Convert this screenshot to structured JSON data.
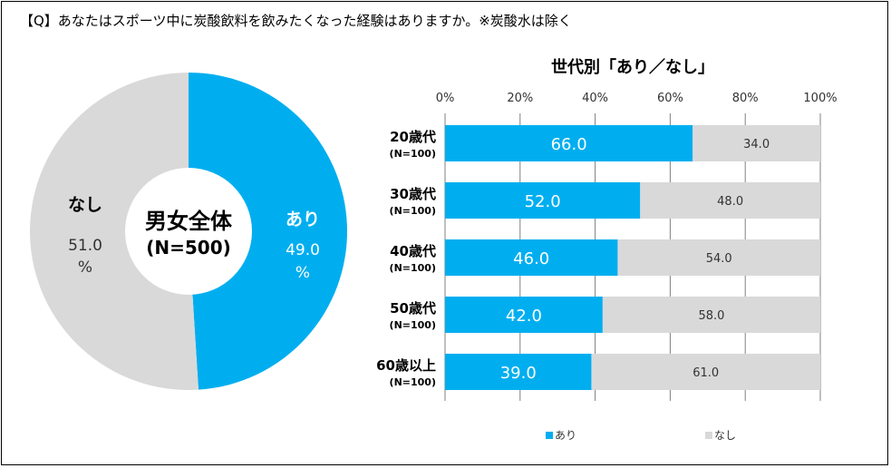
{
  "question": "【Q】あなたはスポーツ中に炭酸飲料を飲みたくなった経験はありますか。※炭酸水は除く",
  "colors": {
    "yes": "#00AEEF",
    "no": "#D9D9D9",
    "grid": "#808080"
  },
  "chart_data": [
    {
      "type": "pie",
      "title": "男女全体",
      "subtitle": "(N=500)",
      "slices": [
        {
          "label": "あり",
          "value": 49.0,
          "value_label": "49.0",
          "unit": "%"
        },
        {
          "label": "なし",
          "value": 51.0,
          "value_label": "51.0",
          "unit": "%"
        }
      ]
    },
    {
      "type": "bar",
      "orientation": "horizontal",
      "stacked": true,
      "title": "世代別「あり／なし」",
      "xlim": [
        0,
        100
      ],
      "xticks": [
        "0%",
        "20%",
        "40%",
        "60%",
        "80%",
        "100%"
      ],
      "grid": true,
      "categories": [
        {
          "label": "20歳代",
          "n": "(N=100)"
        },
        {
          "label": "30歳代",
          "n": "(N=100)"
        },
        {
          "label": "40歳代",
          "n": "(N=100)"
        },
        {
          "label": "50歳代",
          "n": "(N=100)"
        },
        {
          "label": "60歳以上",
          "n": "(N=100)"
        }
      ],
      "series": [
        {
          "name": "あり",
          "values": [
            66.0,
            52.0,
            46.0,
            42.0,
            39.0
          ],
          "labels": [
            "66.0",
            "52.0",
            "46.0",
            "42.0",
            "39.0"
          ]
        },
        {
          "name": "なし",
          "values": [
            34.0,
            48.0,
            54.0,
            58.0,
            61.0
          ],
          "labels": [
            "34.0",
            "48.0",
            "54.0",
            "58.0",
            "61.0"
          ]
        }
      ],
      "legend": {
        "position": "bottom",
        "entries": [
          "あり",
          "なし"
        ]
      }
    }
  ]
}
